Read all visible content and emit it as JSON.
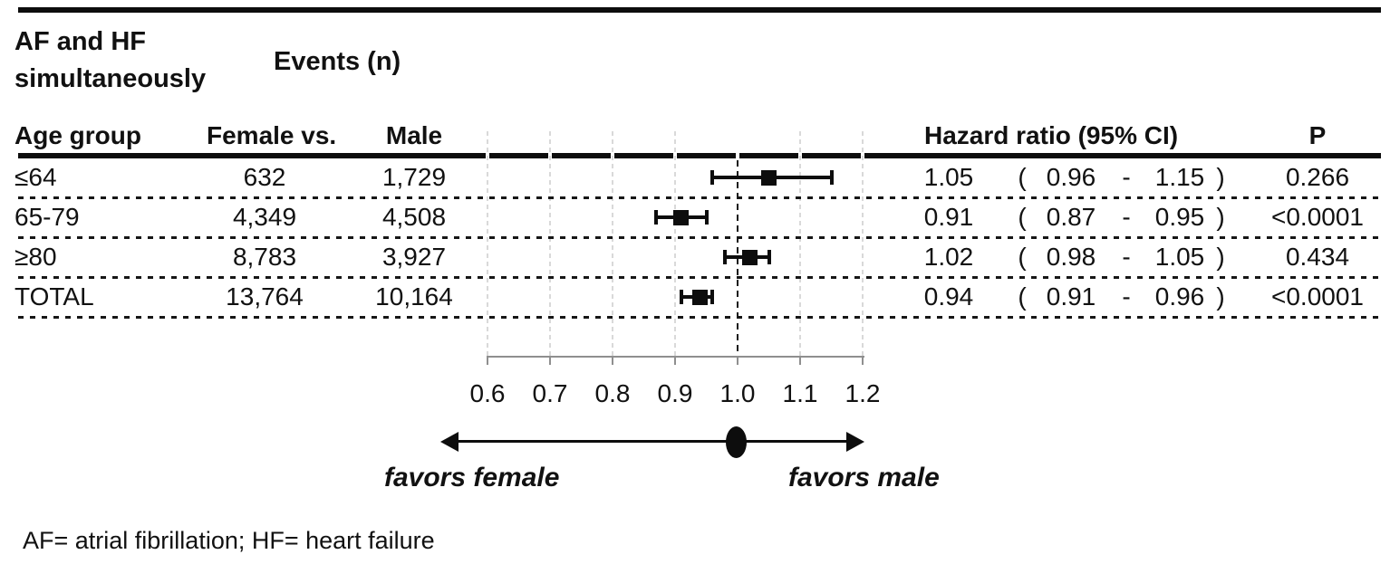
{
  "figure": {
    "title_line1": "AF and HF",
    "title_line2": "simultaneously",
    "events_header": "Events (n)",
    "footnote": "AF= atrial fibrillation; HF= heart failure"
  },
  "table_headers": {
    "age_group": "Age group",
    "female_vs": "Female vs.",
    "male": "Male",
    "hazard_ratio": "Hazard ratio (95% CI)",
    "p": "P"
  },
  "punct": {
    "open": "(",
    "dash": "-",
    "close": ")"
  },
  "chart_data": {
    "type": "forest",
    "x_axis": {
      "min": 0.6,
      "max": 1.2,
      "ticks": [
        0.6,
        0.7,
        0.8,
        0.9,
        1.0,
        1.1,
        1.2
      ],
      "reference_line": 1.0
    },
    "rows": [
      {
        "age_group": "≤64",
        "female_events": "632",
        "male_events": "1,729",
        "hr": 1.05,
        "ci_low": 0.96,
        "ci_high": 1.15,
        "hr_text": "1.05",
        "ci_low_text": "0.96",
        "ci_high_text": "1.15",
        "p_text": "0.266"
      },
      {
        "age_group": "65-79",
        "female_events": "4,349",
        "male_events": "4,508",
        "hr": 0.91,
        "ci_low": 0.87,
        "ci_high": 0.95,
        "hr_text": "0.91",
        "ci_low_text": "0.87",
        "ci_high_text": "0.95",
        "p_text": "<0.0001"
      },
      {
        "age_group": "≥80",
        "female_events": "8,783",
        "male_events": "3,927",
        "hr": 1.02,
        "ci_low": 0.98,
        "ci_high": 1.05,
        "hr_text": "1.02",
        "ci_low_text": "0.98",
        "ci_high_text": "1.05",
        "p_text": "0.434"
      },
      {
        "age_group": "TOTAL",
        "female_events": "13,764",
        "male_events": "10,164",
        "hr": 0.94,
        "ci_low": 0.91,
        "ci_high": 0.96,
        "hr_text": "0.94",
        "ci_low_text": "0.91",
        "ci_high_text": "0.96",
        "p_text": "<0.0001"
      }
    ],
    "direction_labels": {
      "left": "favors female",
      "right": "favors male"
    }
  }
}
